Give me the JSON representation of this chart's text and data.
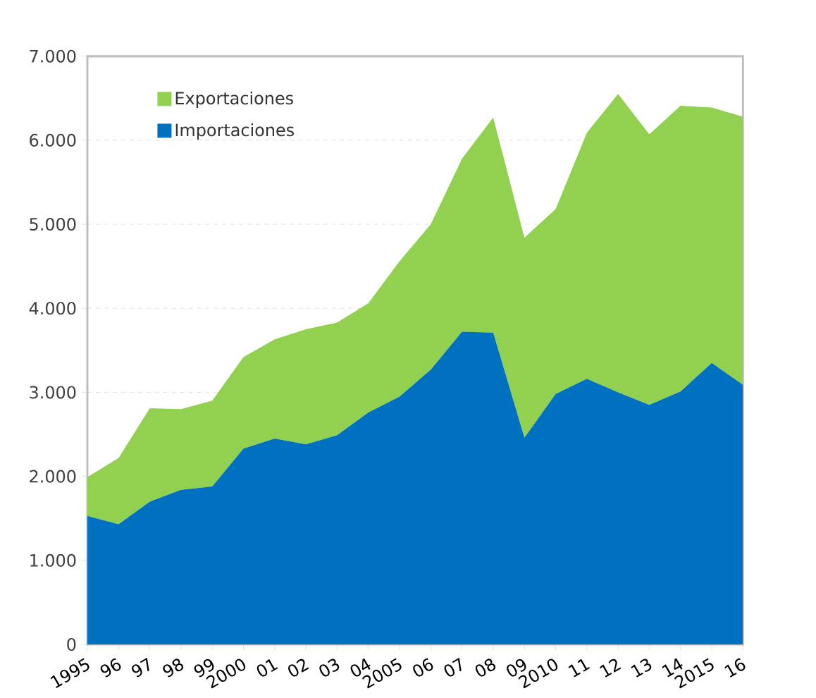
{
  "chart_data": {
    "type": "area",
    "stacked": true,
    "grid": "y",
    "legend": "top left",
    "categories": [
      "1995",
      "96",
      "97",
      "98",
      "99",
      "2000",
      "01",
      "02",
      "03",
      "04",
      "2005",
      "06",
      "07",
      "08",
      "09",
      "2010",
      "11",
      "12",
      "13",
      "14",
      "2015",
      "16"
    ],
    "series": [
      {
        "name": "Importaciones",
        "color": "#0070c0",
        "values": [
          1530,
          1430,
          1700,
          1840,
          1880,
          2330,
          2450,
          2380,
          2490,
          2760,
          2950,
          3270,
          3720,
          3710,
          2460,
          2980,
          3160,
          3000,
          2850,
          3010,
          3350,
          3090
        ]
      },
      {
        "name": "Exportaciones",
        "color": "#92d050",
        "values": [
          460,
          790,
          1110,
          960,
          1020,
          1090,
          1180,
          1370,
          1340,
          1300,
          1610,
          1730,
          2060,
          2560,
          2380,
          2200,
          2930,
          3550,
          3220,
          3400,
          3040,
          3190
        ]
      }
    ],
    "ylim": [
      0,
      7000
    ],
    "yticks": [
      {
        "value": 0,
        "label": "0"
      },
      {
        "value": 1000,
        "label": "1.000"
      },
      {
        "value": 2000,
        "label": "2.000"
      },
      {
        "value": 3000,
        "label": "3.000"
      },
      {
        "value": 4000,
        "label": "4.000"
      },
      {
        "value": 5000,
        "label": "5.000"
      },
      {
        "value": 6000,
        "label": "6.000"
      },
      {
        "value": 7000,
        "label": "7.000"
      }
    ]
  }
}
